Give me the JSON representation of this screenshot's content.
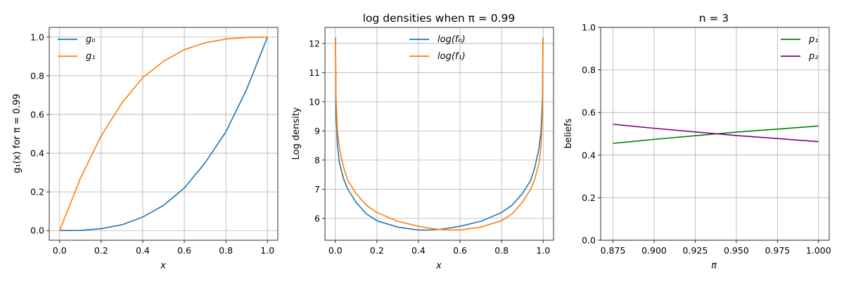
{
  "chart_data": [
    {
      "type": "line",
      "title": "",
      "xlabel": "x",
      "ylabel": "g₁(x) for π = 0.99",
      "xlim": [
        -0.05,
        1.05
      ],
      "ylim": [
        -0.05,
        1.05
      ],
      "xticks": [
        "0.0",
        "0.2",
        "0.4",
        "0.6",
        "0.8",
        "1.0"
      ],
      "yticks": [
        "0.0",
        "0.2",
        "0.4",
        "0.6",
        "0.8",
        "1.0"
      ],
      "grid": true,
      "legend_position": "top-left",
      "series": [
        {
          "name": "g₀",
          "color": "#1f77b4",
          "x": [
            0,
            0.1,
            0.2,
            0.3,
            0.4,
            0.5,
            0.6,
            0.7,
            0.8,
            0.9,
            1.0
          ],
          "y": [
            0,
            0.001,
            0.01,
            0.03,
            0.07,
            0.13,
            0.22,
            0.35,
            0.51,
            0.73,
            1.0
          ]
        },
        {
          "name": "g₁",
          "color": "#ff7f0e",
          "x": [
            0,
            0.1,
            0.2,
            0.3,
            0.4,
            0.5,
            0.6,
            0.7,
            0.8,
            0.9,
            1.0
          ],
          "y": [
            0,
            0.27,
            0.49,
            0.66,
            0.79,
            0.875,
            0.935,
            0.97,
            0.99,
            0.998,
            1.0
          ]
        }
      ]
    },
    {
      "type": "line",
      "title": "log densities when π = 0.99",
      "xlabel": "x",
      "ylabel": "Log density",
      "xlim": [
        -0.05,
        1.05
      ],
      "ylim": [
        5.25,
        12.55
      ],
      "xticks": [
        "0.0",
        "0.2",
        "0.4",
        "0.6",
        "0.8",
        "1.0"
      ],
      "yticks": [
        "6",
        "7",
        "8",
        "9",
        "10",
        "11",
        "12"
      ],
      "grid": true,
      "legend_position": "top-center",
      "series": [
        {
          "name": "log(f₀)",
          "color": "#1f77b4",
          "x": [
            0.001,
            0.003,
            0.01,
            0.02,
            0.04,
            0.06,
            0.1,
            0.15,
            0.2,
            0.3,
            0.4,
            0.45,
            0.5,
            0.55,
            0.6,
            0.7,
            0.8,
            0.85,
            0.9,
            0.94,
            0.96,
            0.98,
            0.99,
            0.997,
            0.999
          ],
          "y": [
            12.2,
            9.6,
            8.5,
            7.9,
            7.35,
            7.0,
            6.55,
            6.15,
            5.92,
            5.7,
            5.6,
            5.6,
            5.62,
            5.67,
            5.73,
            5.9,
            6.2,
            6.45,
            6.85,
            7.3,
            7.75,
            8.4,
            9.0,
            10.2,
            12.2
          ]
        },
        {
          "name": "log(f₁)",
          "color": "#ff7f0e",
          "x": [
            0.001,
            0.003,
            0.01,
            0.02,
            0.04,
            0.06,
            0.1,
            0.15,
            0.2,
            0.3,
            0.4,
            0.45,
            0.5,
            0.55,
            0.6,
            0.7,
            0.8,
            0.85,
            0.9,
            0.94,
            0.96,
            0.98,
            0.99,
            0.997,
            0.999
          ],
          "y": [
            12.2,
            10.2,
            9.0,
            8.4,
            7.75,
            7.3,
            6.85,
            6.45,
            6.2,
            5.9,
            5.73,
            5.67,
            5.62,
            5.6,
            5.6,
            5.7,
            5.92,
            6.15,
            6.55,
            7.0,
            7.35,
            7.9,
            8.5,
            9.6,
            12.2
          ]
        }
      ]
    },
    {
      "type": "line",
      "title": "n = 3",
      "xlabel": "π",
      "ylabel": "beliefs",
      "xlim": [
        0.8675,
        1.0065
      ],
      "ylim": [
        0.0,
        1.0
      ],
      "xticks": [
        "0.875",
        "0.900",
        "0.925",
        "0.950",
        "0.975",
        "1.000"
      ],
      "yticks": [
        "0.0",
        "0.2",
        "0.4",
        "0.6",
        "0.8",
        "1.0"
      ],
      "grid": true,
      "legend_position": "top-right",
      "series": [
        {
          "name": "p₁",
          "color": "#008000",
          "x": [
            0.875,
            0.9,
            0.925,
            0.95,
            0.975,
            1.0
          ],
          "y": [
            0.455,
            0.474,
            0.491,
            0.508,
            0.522,
            0.537
          ]
        },
        {
          "name": "p₂",
          "color": "#800080",
          "x": [
            0.875,
            0.9,
            0.925,
            0.95,
            0.975,
            1.0
          ],
          "y": [
            0.545,
            0.526,
            0.509,
            0.492,
            0.478,
            0.463
          ]
        }
      ]
    }
  ]
}
